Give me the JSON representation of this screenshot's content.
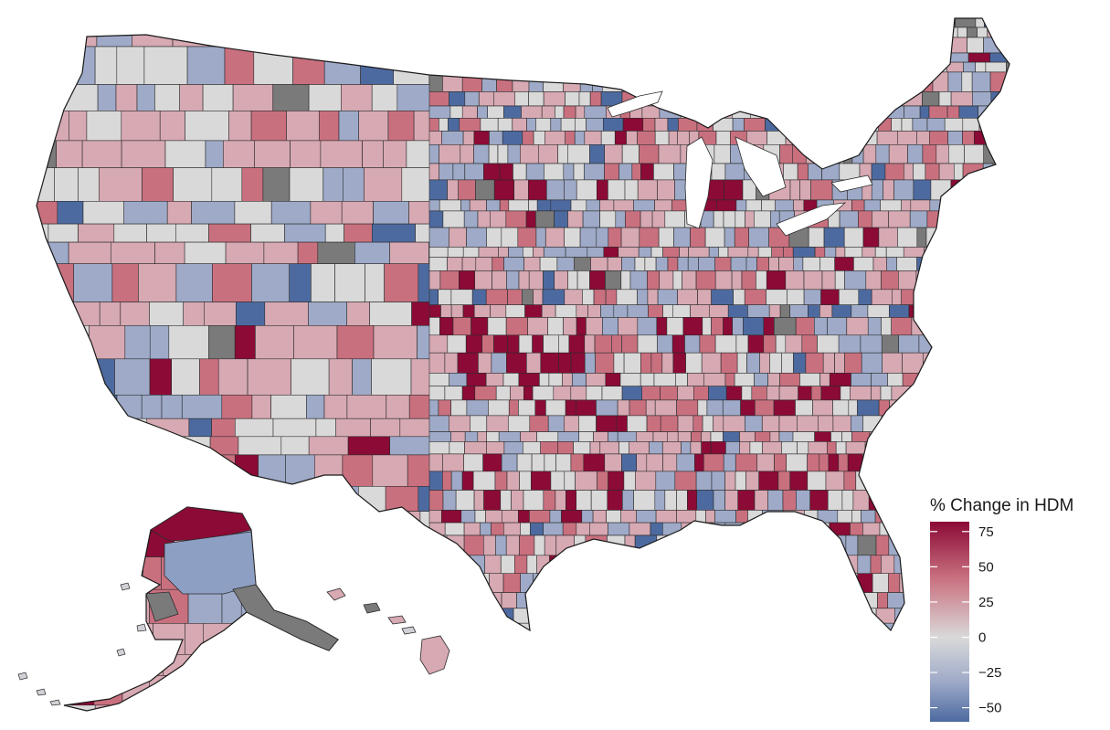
{
  "legend": {
    "title": "% Change in HDM",
    "ticks": [
      {
        "value": 75,
        "label": "75"
      },
      {
        "value": 50,
        "label": "50"
      },
      {
        "value": 25,
        "label": "25"
      },
      {
        "value": 0,
        "label": "0"
      },
      {
        "value": -25,
        "label": "−25"
      },
      {
        "value": -50,
        "label": "−50"
      }
    ],
    "range": [
      -60,
      82
    ]
  },
  "colors": {
    "high": "#8b0a36",
    "mid_high": "#c9707f",
    "neutral": "#d9d9d9",
    "mid_low": "#9eaac8",
    "low": "#4d6aa0",
    "missing": "#7a7a7a",
    "border": "#2b2b2b"
  },
  "map": {
    "regions": [
      "contiguous-us",
      "alaska",
      "hawaii"
    ],
    "color_scale": "diverging"
  }
}
